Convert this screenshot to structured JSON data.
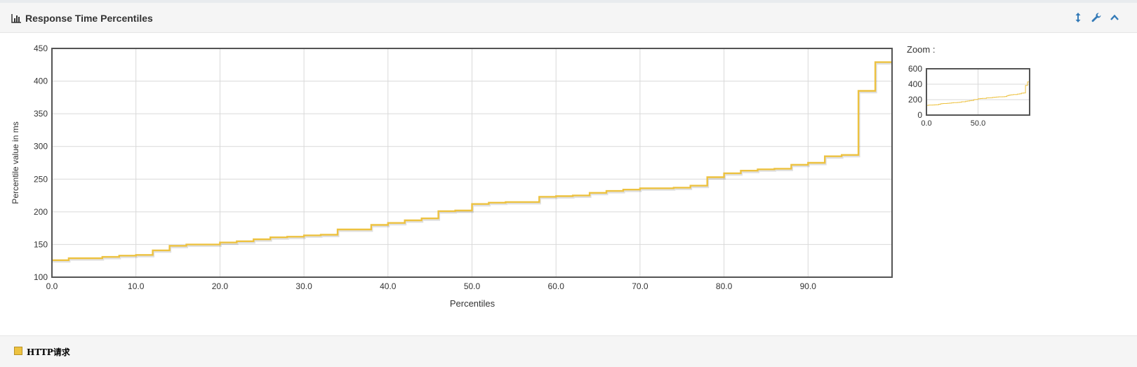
{
  "panel": {
    "title": "Response Time Percentiles"
  },
  "icons": {
    "header": "bar-chart-icon",
    "tools": [
      "resize-vertical-icon",
      "wrench-icon",
      "chevron-up-icon"
    ]
  },
  "zoom_label": "Zoom :",
  "legend": {
    "label": "HTTP请求",
    "color": "#edc240"
  },
  "chart_data": {
    "type": "line",
    "title": "",
    "xlabel": "Percentiles",
    "ylabel": "Percentile value in ms",
    "xlim": [
      0,
      100
    ],
    "ylim": [
      100,
      450
    ],
    "xticks": [
      0.0,
      10.0,
      20.0,
      30.0,
      40.0,
      50.0,
      60.0,
      70.0,
      80.0,
      90.0
    ],
    "yticks": [
      100,
      150,
      200,
      250,
      300,
      350,
      400,
      450
    ],
    "grid": true,
    "step": true,
    "series": [
      {
        "name": "HTTP请求",
        "color": "#edc240",
        "x": [
          0,
          2,
          4,
          6,
          8,
          10,
          12,
          14,
          16,
          18,
          20,
          22,
          24,
          26,
          28,
          30,
          32,
          34,
          36,
          38,
          40,
          42,
          44,
          46,
          48,
          50,
          52,
          54,
          56,
          58,
          60,
          62,
          64,
          66,
          68,
          70,
          72,
          74,
          76,
          78,
          80,
          82,
          84,
          86,
          88,
          90,
          92,
          94,
          96,
          98
        ],
        "y": [
          126,
          129,
          129,
          131,
          133,
          134,
          141,
          148,
          150,
          150,
          153,
          155,
          158,
          161,
          162,
          164,
          165,
          173,
          173,
          180,
          183,
          187,
          190,
          201,
          202,
          212,
          214,
          215,
          215,
          223,
          224,
          225,
          229,
          232,
          234,
          236,
          236,
          237,
          240,
          253,
          259,
          263,
          265,
          266,
          272,
          275,
          285,
          287,
          385,
          429
        ]
      }
    ]
  },
  "zoom_chart": {
    "ylim": [
      0,
      600
    ],
    "yticks": [
      0,
      200,
      400,
      600
    ],
    "xticks": [
      0.0,
      50.0
    ]
  }
}
